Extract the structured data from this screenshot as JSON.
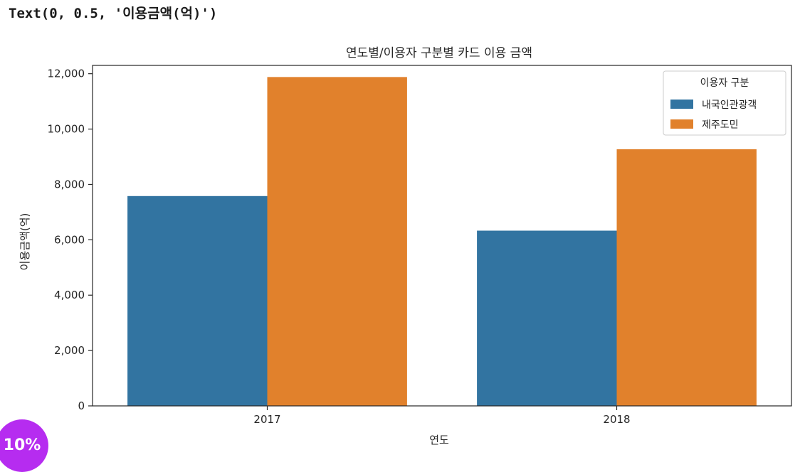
{
  "output_line": "Text(0, 0.5, '이용금액(억)')",
  "badge_text": "10%",
  "chart_data": {
    "type": "bar",
    "title": "연도별/이용자 구분별 카드 이용 금액",
    "xlabel": "연도",
    "ylabel": "이용금액(억)",
    "categories": [
      "2017",
      "2018"
    ],
    "series": [
      {
        "name": "내국인관광객",
        "color": "#3274a1",
        "values": [
          7580,
          6330
        ]
      },
      {
        "name": "제주도민",
        "color": "#e1812c",
        "values": [
          11880,
          9270
        ]
      }
    ],
    "ylim": [
      0,
      12300
    ],
    "yticks": [
      0,
      2000,
      4000,
      6000,
      8000,
      10000,
      12000
    ],
    "ytick_labels": [
      "0",
      "2,000",
      "4,000",
      "6,000",
      "8,000",
      "10,000",
      "12,000"
    ],
    "legend": {
      "title": "이용자 구분",
      "position": "top-right"
    },
    "grid": false
  }
}
